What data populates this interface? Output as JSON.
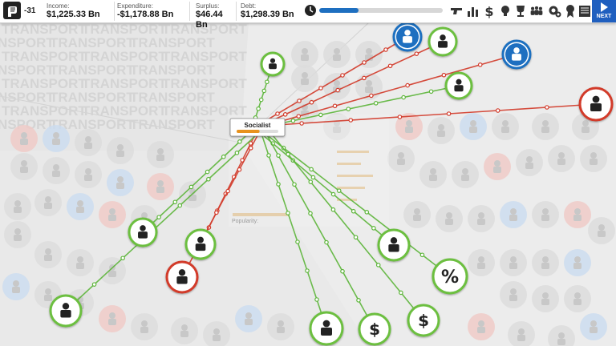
{
  "topbar": {
    "approval": "-31",
    "income_label": "Income:",
    "income_value": "$1,225.33 Bn",
    "expenditure_label": "Expenditure:",
    "expenditure_value": "-$1,178.88 Bn",
    "surplus_label": "Surplus:",
    "surplus_value": "$46.44 Bn",
    "debt_label": "Debt:",
    "debt_value": "$1,298.39 Bn",
    "turn_progress": 0.32,
    "toolbar_icons": [
      "pistol-icon",
      "bar-chart-icon",
      "dollar-icon",
      "lightbulb-icon",
      "trophy-icon",
      "people-icon",
      "gears-icon",
      "rosette-icon",
      "newspaper-icon"
    ],
    "next_label": "NEXT"
  },
  "background": {
    "category_text": "TRANSPORT"
  },
  "focus_group": {
    "label": "Socialist",
    "popularity_label": "Popularity:",
    "popularity": 0.55
  },
  "colors": {
    "positive": "#5db53a",
    "negative": "#d23a2a",
    "focus_ring_blue": "#1e6fc0",
    "ring_green": "#6cbf3f",
    "ring_red": "#d23a2a"
  },
  "nodes": [
    {
      "name": "state-housing-icon",
      "ring": "green",
      "link": "positive"
    },
    {
      "name": "equal-rights-icon",
      "ring": "blue",
      "link": "negative"
    },
    {
      "name": "labor-union-icon",
      "ring": "green",
      "link": "negative"
    },
    {
      "name": "no-money-icon",
      "ring": "blue",
      "link": "negative"
    },
    {
      "name": "homeless-shelter-icon",
      "ring": "green",
      "link": "positive"
    },
    {
      "name": "public-works-icon",
      "ring": "red",
      "link": "negative"
    },
    {
      "name": "law-and-order-icon",
      "ring": "green",
      "link": "positive"
    },
    {
      "name": "education-icon",
      "ring": "green",
      "link": "negative"
    },
    {
      "name": "higher-education-icon",
      "ring": "red",
      "link": "negative"
    },
    {
      "name": "healthcare-icon",
      "ring": "green",
      "link": "positive"
    },
    {
      "name": "corporate-hierarchy-icon",
      "ring": "green",
      "link": "positive"
    },
    {
      "name": "percent-tax-icon",
      "ring": "green",
      "link": "positive",
      "text": "%"
    },
    {
      "name": "employee-icon",
      "ring": "green",
      "link": "positive"
    },
    {
      "name": "property-tax-icon",
      "ring": "green",
      "link": "positive",
      "text": "$"
    },
    {
      "name": "wealth-tax-icon",
      "ring": "green",
      "link": "positive",
      "text": "$"
    }
  ]
}
